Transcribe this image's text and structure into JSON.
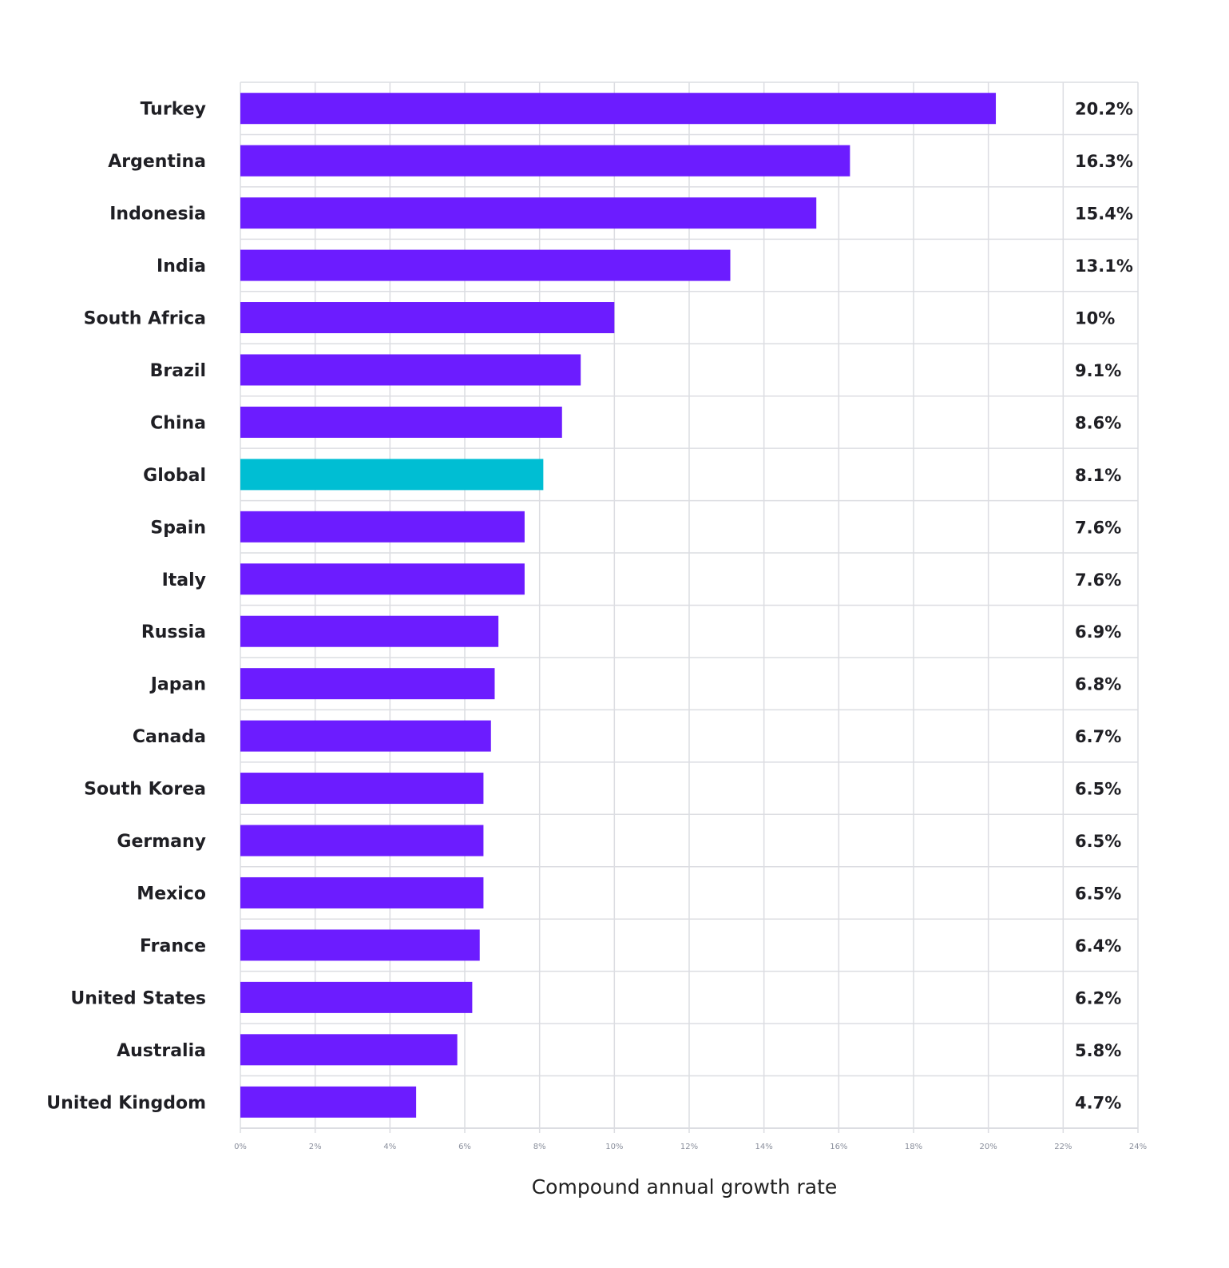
{
  "chart_data": {
    "type": "bar",
    "orientation": "horizontal",
    "title": "",
    "xlabel": "Compound annual growth rate",
    "ylabel": "",
    "xlim": [
      0,
      24
    ],
    "x_ticks": [
      "0%",
      "2%",
      "4%",
      "6%",
      "8%",
      "10%",
      "12%",
      "14%",
      "16%",
      "18%",
      "20%",
      "22%",
      "24%"
    ],
    "grid": true,
    "categories": [
      "Turkey",
      "Argentina",
      "Indonesia",
      "India",
      "South Africa",
      "Brazil",
      "China",
      "Global",
      "Spain",
      "Italy",
      "Russia",
      "Japan",
      "Canada",
      "South Korea",
      "Germany",
      "Mexico",
      "France",
      "United States",
      "Australia",
      "United Kingdom"
    ],
    "values": [
      20.2,
      16.3,
      15.4,
      13.1,
      10,
      9.1,
      8.6,
      8.1,
      7.6,
      7.6,
      6.9,
      6.8,
      6.7,
      6.5,
      6.5,
      6.5,
      6.4,
      6.2,
      5.8,
      4.7
    ],
    "value_labels": [
      "20.2%",
      "16.3%",
      "15.4%",
      "13.1%",
      "10%",
      "9.1%",
      "8.6%",
      "8.1%",
      "7.6%",
      "7.6%",
      "6.9%",
      "6.8%",
      "6.7%",
      "6.5%",
      "6.5%",
      "6.5%",
      "6.4%",
      "6.2%",
      "5.8%",
      "4.7%"
    ],
    "colors": {
      "default": "#6c1cff",
      "highlight": "#00bed3",
      "highlight_category": "Global"
    }
  }
}
